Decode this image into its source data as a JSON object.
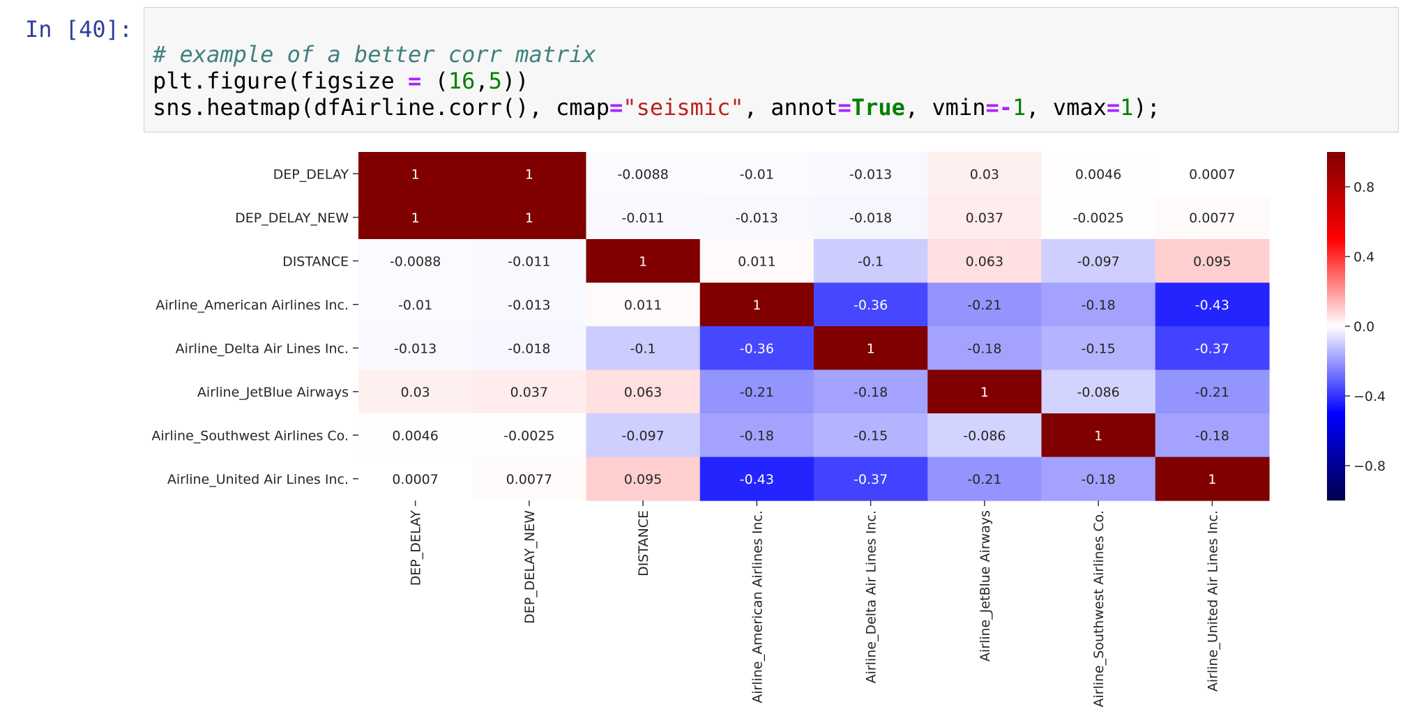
{
  "cell": {
    "prompt": "In [40]:",
    "code_lines": [
      [
        {
          "t": "# example of a better corr matrix",
          "c": "comment"
        }
      ],
      [
        {
          "t": "plt.figure(figsize ",
          "c": "plain"
        },
        {
          "t": "=",
          "c": "op"
        },
        {
          "t": " (",
          "c": "plain"
        },
        {
          "t": "16",
          "c": "num"
        },
        {
          "t": ",",
          "c": "plain"
        },
        {
          "t": "5",
          "c": "num"
        },
        {
          "t": "))",
          "c": "plain"
        }
      ],
      [
        {
          "t": "sns.heatmap(dfAirline.corr(), cmap",
          "c": "plain"
        },
        {
          "t": "=",
          "c": "op"
        },
        {
          "t": "\"seismic\"",
          "c": "str"
        },
        {
          "t": ", annot",
          "c": "plain"
        },
        {
          "t": "=",
          "c": "op"
        },
        {
          "t": "True",
          "c": "kw"
        },
        {
          "t": ", vmin",
          "c": "plain"
        },
        {
          "t": "=-",
          "c": "op"
        },
        {
          "t": "1",
          "c": "num"
        },
        {
          "t": ", vmax",
          "c": "plain"
        },
        {
          "t": "=",
          "c": "op"
        },
        {
          "t": "1",
          "c": "num"
        },
        {
          "t": ");",
          "c": "plain"
        }
      ]
    ]
  },
  "colors": {
    "prompt": "#303f9f",
    "comment": "#408080",
    "op": "#aa22ff",
    "num": "#008000",
    "str": "#ba2121",
    "kw": "#008000",
    "cell_bg": "#f7f7f7",
    "cell_border": "#cfcfcf"
  },
  "chart_data": {
    "type": "heatmap",
    "colormap": "seismic",
    "vmin": -1,
    "vmax": 1,
    "annot": true,
    "rows": [
      "DEP_DELAY",
      "DEP_DELAY_NEW",
      "DISTANCE",
      "Airline_American Airlines Inc.",
      "Airline_Delta Air Lines Inc.",
      "Airline_JetBlue Airways",
      "Airline_Southwest Airlines Co.",
      "Airline_United Air Lines Inc."
    ],
    "cols": [
      "DEP_DELAY",
      "DEP_DELAY_NEW",
      "DISTANCE",
      "Airline_American Airlines Inc.",
      "Airline_Delta Air Lines Inc.",
      "Airline_JetBlue Airways",
      "Airline_Southwest Airlines Co.",
      "Airline_United Air Lines Inc."
    ],
    "values": [
      [
        1,
        1,
        -0.0088,
        -0.01,
        -0.013,
        0.03,
        0.0046,
        0.0007
      ],
      [
        1,
        1,
        -0.011,
        -0.013,
        -0.018,
        0.037,
        -0.0025,
        0.0077
      ],
      [
        -0.0088,
        -0.011,
        1,
        0.011,
        -0.1,
        0.063,
        -0.097,
        0.095
      ],
      [
        -0.01,
        -0.013,
        0.011,
        1,
        -0.36,
        -0.21,
        -0.18,
        -0.43
      ],
      [
        -0.013,
        -0.018,
        -0.1,
        -0.36,
        1,
        -0.18,
        -0.15,
        -0.37
      ],
      [
        0.03,
        0.037,
        0.063,
        -0.21,
        -0.18,
        1,
        -0.086,
        -0.21
      ],
      [
        0.0046,
        -0.0025,
        -0.097,
        -0.18,
        -0.15,
        -0.086,
        1,
        -0.18
      ],
      [
        0.0007,
        0.0077,
        0.095,
        -0.43,
        -0.37,
        -0.21,
        -0.18,
        1
      ]
    ],
    "colorbar_ticks": [
      0.8,
      0.4,
      0.0,
      -0.4,
      -0.8
    ],
    "colorbar_tick_labels": [
      "0.8",
      "0.4",
      "0.0",
      "−0.4",
      "−0.8"
    ]
  }
}
